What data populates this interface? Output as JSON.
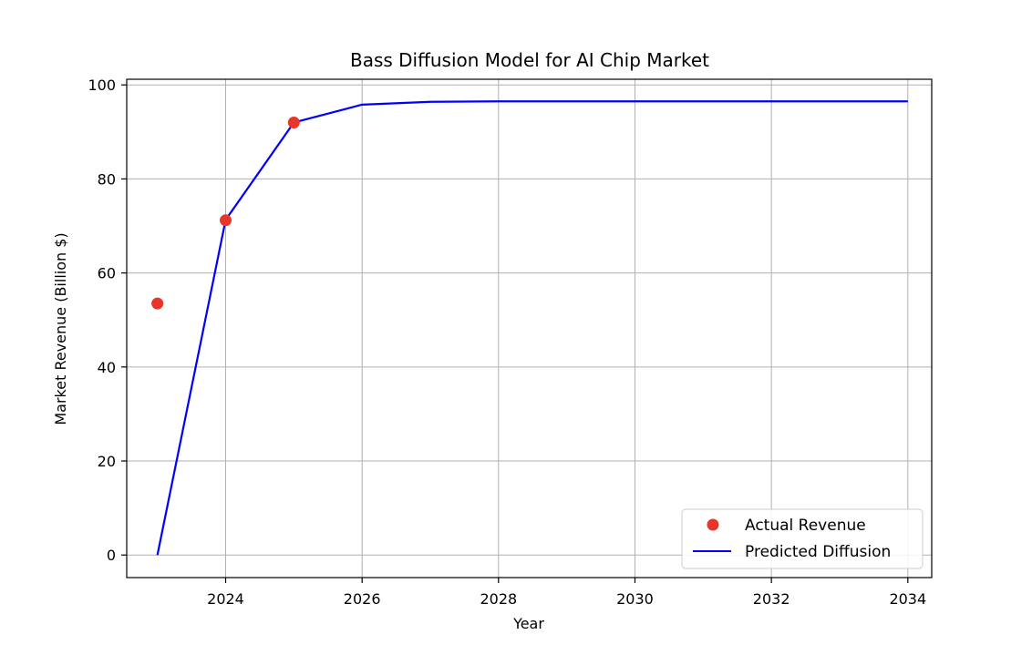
{
  "chart_data": {
    "type": "line",
    "title": "Bass Diffusion Model for AI Chip Market",
    "xlabel": "Year",
    "ylabel": "Market Revenue (Billion $)",
    "xlim": [
      2022.55,
      2034.35
    ],
    "ylim": [
      -4.8,
      101.2
    ],
    "xticks": [
      2024,
      2026,
      2028,
      2030,
      2032,
      2034
    ],
    "yticks": [
      0,
      20,
      40,
      60,
      80,
      100
    ],
    "grid": true,
    "legend_position": "lower-right",
    "series": [
      {
        "name": "Actual Revenue",
        "kind": "scatter",
        "color": "#e8352a",
        "x": [
          2023,
          2024,
          2025
        ],
        "y": [
          53.5,
          71.2,
          92.0
        ]
      },
      {
        "name": "Predicted Diffusion",
        "kind": "line",
        "color": "#0000ff",
        "x": [
          2023,
          2024,
          2025,
          2026,
          2027,
          2028,
          2029,
          2030,
          2031,
          2032,
          2033,
          2034
        ],
        "y": [
          0.0,
          71.3,
          92.0,
          95.8,
          96.4,
          96.5,
          96.5,
          96.5,
          96.5,
          96.5,
          96.5,
          96.5
        ]
      }
    ]
  }
}
